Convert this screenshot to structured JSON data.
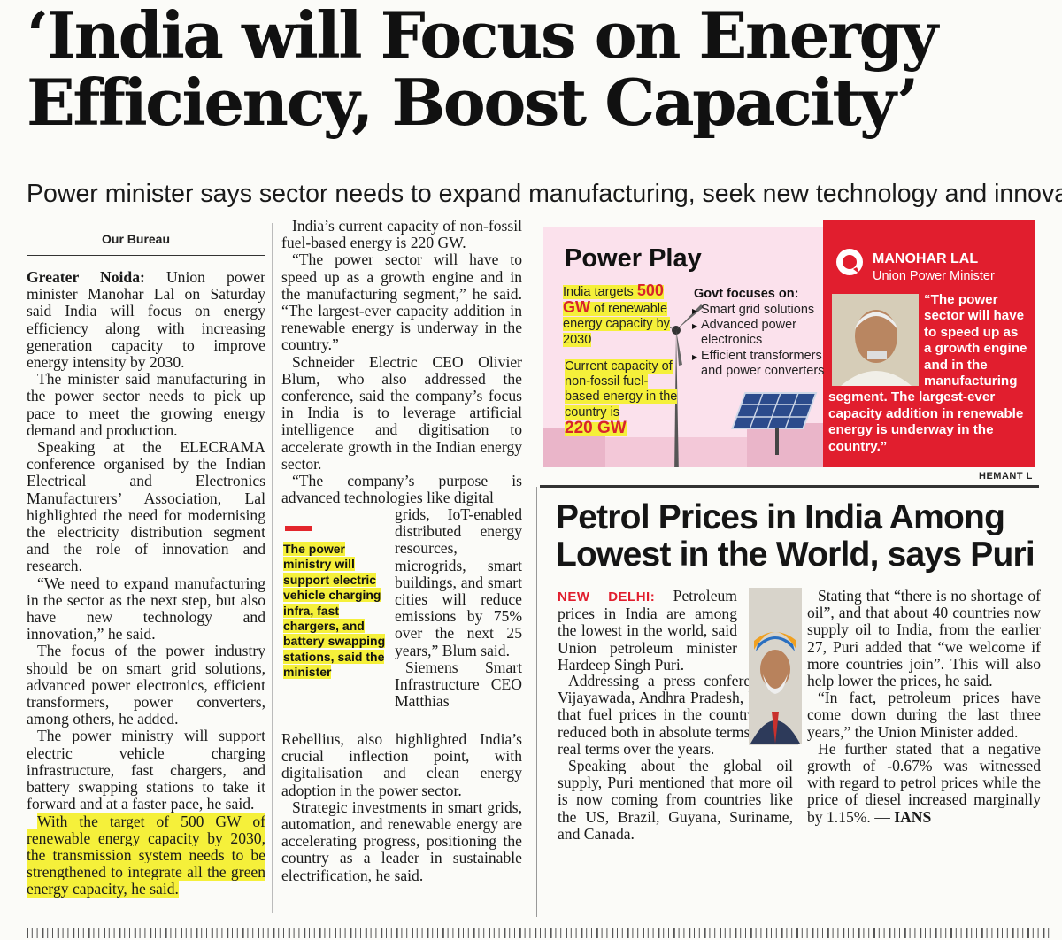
{
  "headline": [
    "‘India will Focus on Energy",
    "Efficiency, Boost Capacity’"
  ],
  "subhead": "Power minister says sector needs to expand manufacturing, seek new technology and innovation",
  "byline": "Our Bureau",
  "main_story": {
    "dateline": "Greater Noida:",
    "col1_paragraphs": [
      " Union power minister Manohar Lal on Saturday said India will focus on energy efficiency along with increasing generation capacity to improve energy intensity by 2030.",
      "The minister said manufacturing in the power sector needs to pick up pace to meet the growing energy demand and production.",
      "Speaking at the ELECRAMA conference organised by the Indian Electrical and Electronics Manufacturers’ Association, Lal highlighted the need for modernising the electricity distribution segment and the role of innovation and research.",
      "“We need to expand manufacturing in the sector as the next step, but also have new technology and innovation,” he said.",
      "The focus of the power industry should be on smart grid solutions, advanced power electronics, efficient transformers, power converters, among others, he added.",
      "The power ministry will support electric vehicle charging infrastructure, fast chargers, and battery swapping stations to take it forward and at a faster pace, he said."
    ],
    "col1_highlighted": "With the target of 500 GW of renewable energy capacity by 2030, the transmission system needs to be strengthened to integrate all the green energy capacity, he said.",
    "col2_top": [
      "India’s current capacity of non-fossil fuel-based energy is 220 GW.",
      "“The power sector will have to speed up as a growth engine and in the manufacturing segment,” he said. “The largest-ever capacity addition in renewable energy is underway in the country.”",
      "Schneider Electric CEO Olivier Blum, who also addressed the conference, said the company’s focus in India is to leverage artificial intelligence and digitisation to accelerate growth in the Indian energy sector.",
      "“The company’s purpose is advanced technologies like digital"
    ],
    "col2_narrow": "grids, IoT-enabled distributed energy resources, microgrids, smart buildings, and smart cities will reduce emissions by 75% over the next 25 years,” Blum said.",
    "col2_narrow2": "Siemens Smart Infrastructure CEO Matthias",
    "col2_bottom": [
      "Rebellius, also highlighted India’s crucial inflection point, with digitalisation and clean energy adoption in the power sector.",
      "Strategic investments in smart grids, automation, and renewable energy are accelerating progress, positioning the country as a leader in sustainable electrification, he said."
    ],
    "pull_quote": "The power ministry will support electric vehicle charging infra, fast chargers, and battery swapping stations, said the minister"
  },
  "graphic": {
    "title": "Power Play",
    "target_pre": "India targets ",
    "target_big1": "500",
    "target_big2": "GW",
    "target_post": " of renewable energy capacity by 2030",
    "current_text": "Current capacity of non-fossil fuel-based energy in the country is",
    "current_big": "220 GW",
    "focus_heading": "Govt focuses on:",
    "focus_items": [
      "Smart grid solutions",
      "Advanced power electronics",
      "Efficient transformers and power converters"
    ],
    "minister_name": "MANOHAR LAL",
    "minister_role": "Union Power Minister",
    "minister_quote": "“The power sector will have to speed up as a growth engine and in the manufacturing segment. The largest-ever capacity addition in renewable energy is underway in the country.”",
    "credit": "HEMANT L"
  },
  "second_story": {
    "headline": [
      "Petrol Prices in India Among",
      "Lowest in the World, says Puri"
    ],
    "dateline": "NEW DELHI:",
    "col1_first": " Petroleum prices in India are among the lowest in the world, said Union petroleum minister Hardeep Singh Puri.",
    "col1_rest": [
      "Addressing a press conference in Vijayawada, Andhra Pradesh, he said that fuel prices in the country have reduced both in absolute terms and in real terms over the years.",
      "Speaking about the global oil supply, Puri mentioned that more oil is now coming from countries like the US, Brazil, Guyana, Suriname, and Canada."
    ],
    "col2": [
      "Stating that “there is no shortage of oil”, and that about 40 countries now supply oil to India, from the earlier 27, Puri added that “we welcome if more countries join”. This will also help lower the prices, he said.",
      "“In fact, petroleum prices have come down during the last three years,” the Union Minister added."
    ],
    "col2_last": "He further stated that a negative growth of -0.67% was witnessed with regard to petrol prices while the price of diesel increased marginally by 1.15%. — ",
    "agency": "IANS"
  },
  "colors": {
    "accent_red": "#e11e2e",
    "highlight_yellow": "#f5f03a",
    "graphic_pink": "#fbe1ec"
  }
}
